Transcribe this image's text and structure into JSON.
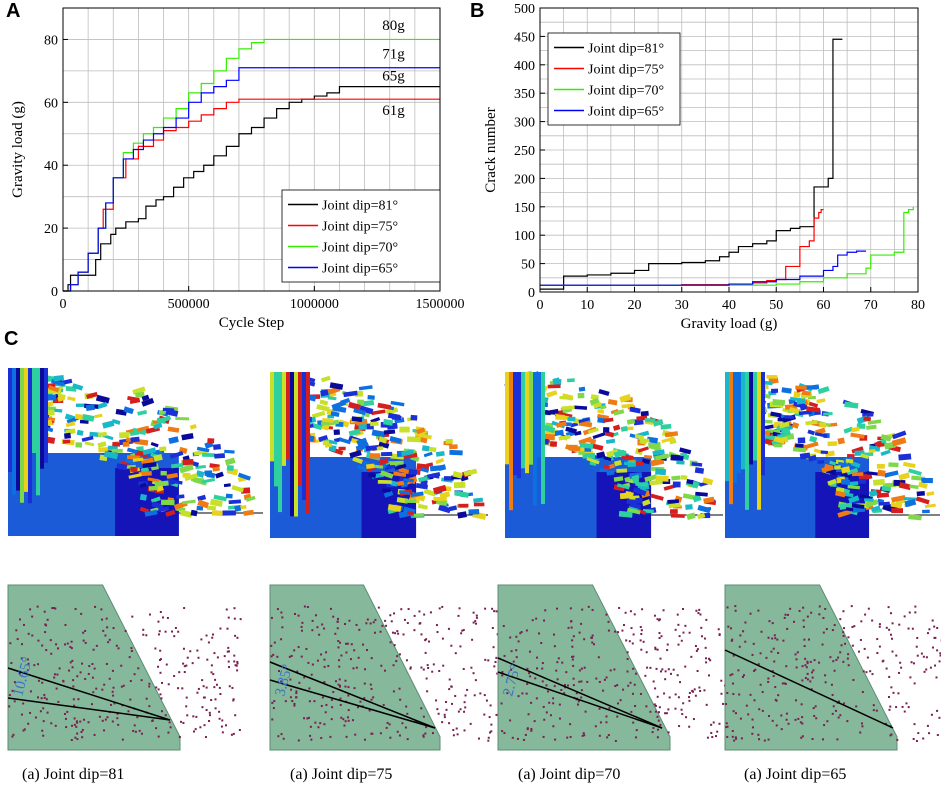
{
  "panel_labels": {
    "a": "A",
    "b": "B",
    "c": "C"
  },
  "colors": {
    "black": "#000000",
    "red": "#ff0000",
    "green": "#33ee00",
    "blue": "#0000ff",
    "grid": "#bdbdbd",
    "slope_fill": "#86b89c",
    "crack": "#7a2050",
    "angle_text": "#3a72c8"
  },
  "chart_data": [
    {
      "type": "line",
      "xlabel": "Cycle Step",
      "ylabel": "Gravity load (g)",
      "xlim": [
        0,
        1500000
      ],
      "ylim": [
        0,
        90
      ],
      "xticks": [
        0,
        500000,
        1000000,
        1500000
      ],
      "xtick_labels": [
        "0",
        "500000",
        "1000000",
        "1500000"
      ],
      "yticks": [
        0,
        20,
        40,
        60,
        80
      ],
      "ytick_labels": [
        "0",
        "20",
        "40",
        "60",
        "80"
      ],
      "grid": true,
      "legend_position": "bottom-right",
      "series": [
        {
          "name": "Joint dip=81°",
          "color": "#000000",
          "x": [
            0,
            20000,
            30000,
            50000,
            100000,
            130000,
            150000,
            190000,
            210000,
            250000,
            300000,
            330000,
            370000,
            400000,
            440000,
            480000,
            520000,
            560000,
            600000,
            650000,
            700000,
            750000,
            800000,
            850000,
            900000,
            950000,
            1000000,
            1050000,
            1100000,
            1500000
          ],
          "y": [
            0,
            2,
            5,
            5,
            5,
            10,
            15,
            18,
            20,
            22,
            23,
            27,
            29,
            30,
            33,
            36,
            38,
            40,
            43,
            46,
            50,
            52,
            55,
            58,
            60,
            61,
            62,
            63,
            65,
            65
          ]
        },
        {
          "name": "Joint dip=75°",
          "color": "#ff0000",
          "x": [
            0,
            30000,
            60000,
            100000,
            140000,
            160000,
            200000,
            250000,
            300000,
            360000,
            400000,
            450000,
            500000,
            550000,
            600000,
            650000,
            700000,
            1500000
          ],
          "y": [
            0,
            2,
            6,
            12,
            20,
            26,
            36,
            42,
            46,
            48,
            51,
            52,
            54,
            56,
            58,
            60,
            61,
            61
          ]
        },
        {
          "name": "Joint dip=70°",
          "color": "#33ee00",
          "x": [
            0,
            30000,
            60000,
            100000,
            140000,
            170000,
            200000,
            240000,
            280000,
            320000,
            360000,
            400000,
            450000,
            500000,
            550000,
            600000,
            650000,
            700000,
            750000,
            800000,
            1500000
          ],
          "y": [
            0,
            2,
            6,
            12,
            20,
            28,
            36,
            44,
            47,
            50,
            52,
            55,
            58,
            63,
            66,
            70,
            74,
            77,
            79,
            80,
            80
          ]
        },
        {
          "name": "Joint dip=65°",
          "color": "#0000ff",
          "x": [
            0,
            30000,
            60000,
            100000,
            140000,
            170000,
            200000,
            240000,
            280000,
            320000,
            360000,
            400000,
            450000,
            500000,
            550000,
            600000,
            650000,
            700000,
            1500000
          ],
          "y": [
            0,
            2,
            6,
            12,
            20,
            28,
            36,
            42,
            45,
            48,
            50,
            52,
            55,
            60,
            63,
            65,
            67,
            71,
            71
          ]
        }
      ],
      "annotations": [
        {
          "text": "80g",
          "x": 1270000,
          "y": 83
        },
        {
          "text": "71g",
          "x": 1270000,
          "y": 74
        },
        {
          "text": "65g",
          "x": 1270000,
          "y": 67
        },
        {
          "text": "61g",
          "x": 1270000,
          "y": 56
        }
      ]
    },
    {
      "type": "line",
      "xlabel": "Gravity load (g)",
      "ylabel": "Crack number",
      "xlim": [
        0,
        80
      ],
      "ylim": [
        0,
        500
      ],
      "xticks": [
        0,
        10,
        20,
        30,
        40,
        50,
        60,
        70,
        80
      ],
      "xtick_labels": [
        "0",
        "10",
        "20",
        "30",
        "40",
        "50",
        "60",
        "70",
        "80"
      ],
      "yticks": [
        0,
        50,
        100,
        150,
        200,
        250,
        300,
        350,
        400,
        450,
        500
      ],
      "ytick_labels": [
        "0",
        "50",
        "100",
        "150",
        "200",
        "250",
        "300",
        "350",
        "400",
        "450",
        "500"
      ],
      "grid": true,
      "legend_position": "top-left",
      "series": [
        {
          "name": "Joint dip=81°",
          "color": "#000000",
          "x": [
            0,
            5,
            5,
            10,
            15,
            20,
            23,
            23,
            30,
            35,
            38,
            40,
            42,
            45,
            48,
            50,
            50,
            53,
            55,
            58,
            58,
            60,
            61,
            61,
            62,
            62,
            63,
            64
          ],
          "y": [
            5,
            5,
            28,
            30,
            33,
            38,
            42,
            50,
            52,
            55,
            62,
            70,
            80,
            85,
            90,
            95,
            108,
            112,
            115,
            120,
            185,
            185,
            185,
            200,
            200,
            445,
            445,
            445
          ]
        },
        {
          "name": "Joint dip=75°",
          "color": "#ff0000",
          "x": [
            0,
            20,
            30,
            40,
            45,
            48,
            50,
            52,
            52,
            55,
            55,
            57,
            58,
            58,
            59,
            59.5,
            60
          ],
          "y": [
            12,
            12,
            13,
            14,
            16,
            20,
            22,
            25,
            45,
            70,
            80,
            90,
            100,
            130,
            140,
            145,
            145
          ]
        },
        {
          "name": "Joint dip=70°",
          "color": "#33ee00",
          "x": [
            0,
            20,
            40,
            50,
            55,
            60,
            65,
            69,
            70,
            75,
            77,
            77,
            78,
            79
          ],
          "y": [
            12,
            12,
            12,
            14,
            18,
            25,
            32,
            42,
            65,
            70,
            70,
            140,
            145,
            150
          ]
        },
        {
          "name": "Joint dip=65°",
          "color": "#0000ff",
          "x": [
            0,
            20,
            40,
            45,
            50,
            55,
            60,
            62,
            63,
            65,
            67,
            69
          ],
          "y": [
            12,
            12,
            14,
            18,
            22,
            28,
            38,
            45,
            65,
            70,
            72,
            72
          ]
        }
      ]
    }
  ],
  "simulations": [
    {
      "id": "81",
      "caption": "(a) Joint dip=81",
      "angle_label": "10.65°"
    },
    {
      "id": "75",
      "caption": "(a) Joint dip=75",
      "angle_label": "3.85°"
    },
    {
      "id": "70",
      "caption": "(a) Joint dip=70",
      "angle_label": "2.75°"
    },
    {
      "id": "65",
      "caption": "(a) Joint dip=65",
      "angle_label": ""
    }
  ]
}
